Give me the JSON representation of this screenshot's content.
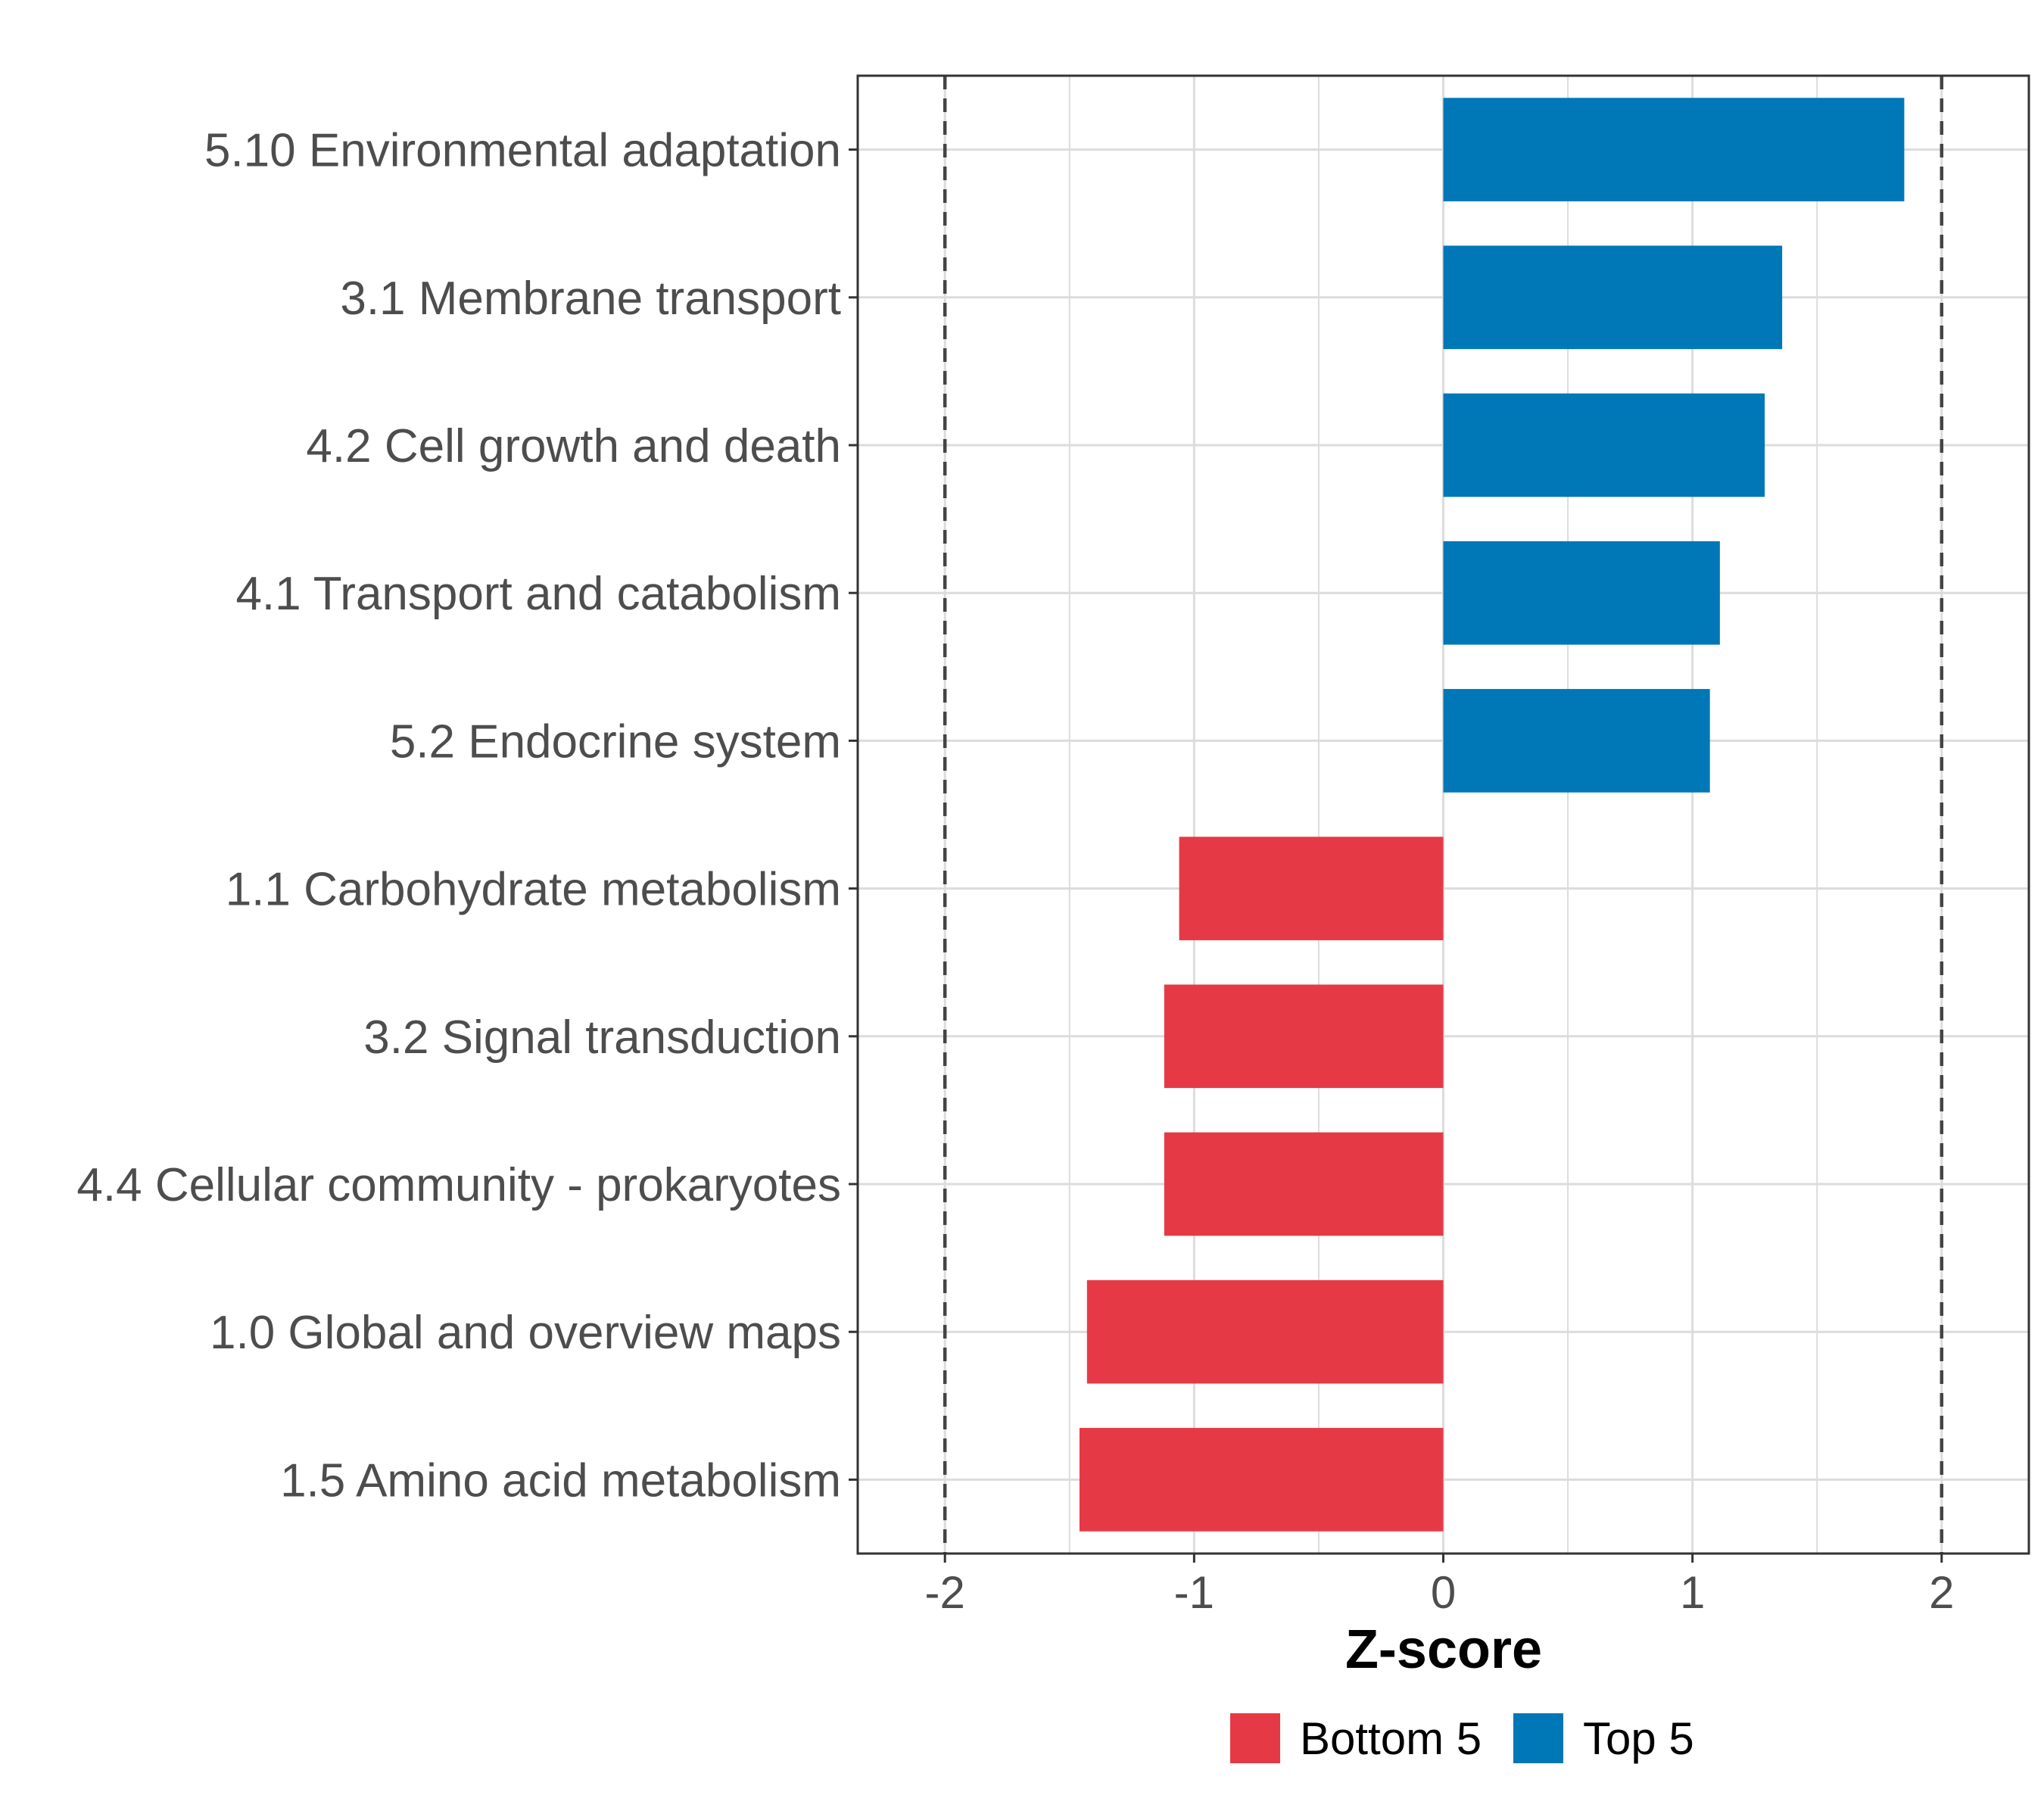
{
  "chart_data": {
    "type": "bar",
    "orientation": "horizontal",
    "title": "",
    "xlabel": "Z-score",
    "ylabel": "",
    "xlim": [
      -2.35,
      2.35
    ],
    "x_ticks": [
      -2,
      -1,
      0,
      1,
      2
    ],
    "x_tick_labels": [
      "-2",
      "-1",
      "0",
      "1",
      "2"
    ],
    "reference_lines": [
      -2,
      2
    ],
    "grid": true,
    "categories": [
      "5.10 Environmental adaptation",
      "3.1 Membrane transport",
      "4.2 Cell growth and death",
      "4.1 Transport and catabolism",
      "5.2 Endocrine system",
      "1.1 Carbohydrate metabolism",
      "3.2 Signal transduction",
      "4.4 Cellular community - prokaryotes",
      "1.0 Global and overview maps",
      "1.5 Amino acid metabolism"
    ],
    "values": [
      1.85,
      1.36,
      1.29,
      1.11,
      1.07,
      -1.06,
      -1.12,
      -1.12,
      -1.43,
      -1.46
    ],
    "groups": [
      "Top 5",
      "Top 5",
      "Top 5",
      "Top 5",
      "Top 5",
      "Bottom 5",
      "Bottom 5",
      "Bottom 5",
      "Bottom 5",
      "Bottom 5"
    ],
    "legend": {
      "position": "bottom",
      "entries": [
        {
          "label": "Bottom 5",
          "color": "#E63946"
        },
        {
          "label": "Top 5",
          "color": "#0077B6"
        }
      ]
    }
  },
  "colors": {
    "top": "#0077B6",
    "bottom": "#E63946",
    "grid": "#dcdcdc",
    "panel_border": "#333333",
    "reference_line": "#444444"
  }
}
